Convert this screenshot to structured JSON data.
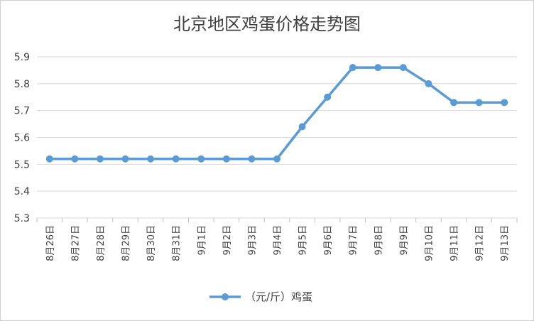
{
  "chart_data": {
    "type": "line",
    "title": "北京地区鸡蛋价格走势图",
    "categories": [
      "8月26日",
      "8月27日",
      "8月28日",
      "8月29日",
      "8月30日",
      "8月31日",
      "9月1日",
      "9月2日",
      "9月3日",
      "9月4日",
      "9月5日",
      "9月6日",
      "9月7日",
      "9月8日",
      "9月9日",
      "9月10日",
      "9月11日",
      "9月12日",
      "9月13日"
    ],
    "series": [
      {
        "name": "（元/斤）鸡蛋",
        "values": [
          5.52,
          5.52,
          5.52,
          5.52,
          5.52,
          5.52,
          5.52,
          5.52,
          5.52,
          5.52,
          5.64,
          5.75,
          5.86,
          5.86,
          5.86,
          5.8,
          5.73,
          5.73,
          5.73
        ],
        "color": "#5b9bd5"
      }
    ],
    "yticks": [
      "5.3",
      "5.4",
      "5.5",
      "5.6",
      "5.7",
      "5.8",
      "5.9"
    ],
    "ylim": [
      5.3,
      5.9
    ],
    "grid": true,
    "legend_position": "bottom"
  }
}
